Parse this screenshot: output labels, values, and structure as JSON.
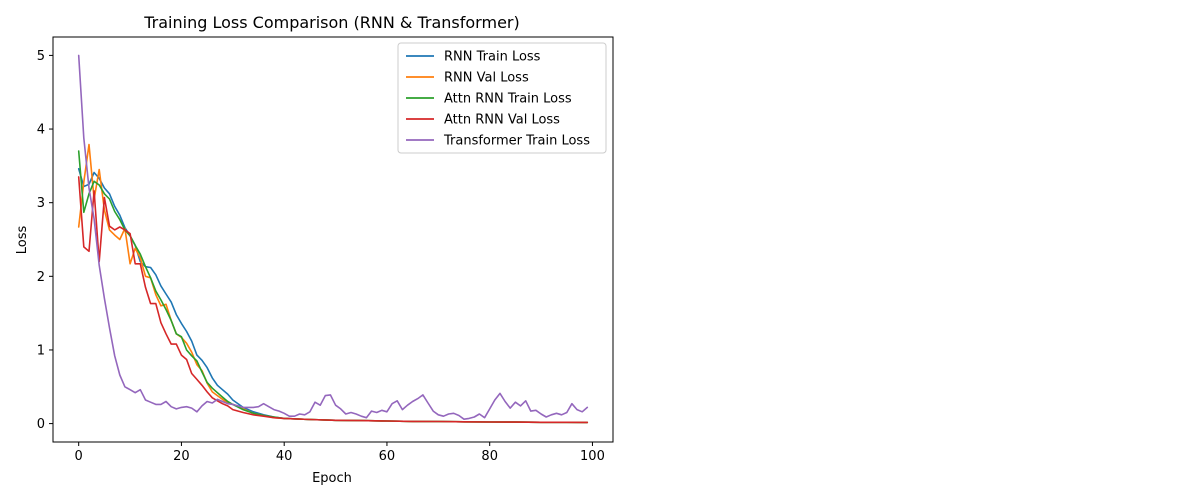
{
  "chart_data": {
    "type": "line",
    "title": "Training Loss Comparison (RNN & Transformer)",
    "xlabel": "Epoch",
    "ylabel": "Loss",
    "xlim": [
      -5,
      104
    ],
    "ylim": [
      -0.25,
      5.25
    ],
    "xticks": [
      0,
      20,
      40,
      60,
      80,
      100
    ],
    "yticks": [
      0,
      1,
      2,
      3,
      4,
      5
    ],
    "legend_position": "top-right",
    "grid": false,
    "series": [
      {
        "name": "RNN Train Loss",
        "color": "#1f77b4",
        "x": [
          0,
          1,
          2,
          3,
          4,
          5,
          6,
          7,
          8,
          9,
          10,
          11,
          12,
          13,
          14,
          15,
          16,
          17,
          18,
          19,
          20,
          21,
          22,
          23,
          24,
          25,
          26,
          27,
          28,
          29,
          30,
          32,
          34,
          36,
          38,
          40,
          45,
          50,
          55,
          60,
          65,
          70,
          75,
          80,
          85,
          90,
          95,
          99
        ],
        "y": [
          3.46,
          3.22,
          3.25,
          3.41,
          3.33,
          3.2,
          3.12,
          2.95,
          2.83,
          2.66,
          2.55,
          2.42,
          2.2,
          2.13,
          2.12,
          2.02,
          1.87,
          1.76,
          1.65,
          1.48,
          1.36,
          1.25,
          1.12,
          0.93,
          0.86,
          0.76,
          0.62,
          0.52,
          0.46,
          0.4,
          0.32,
          0.22,
          0.16,
          0.12,
          0.09,
          0.07,
          0.055,
          0.045,
          0.04,
          0.035,
          0.03,
          0.028,
          0.025,
          0.022,
          0.02,
          0.018,
          0.017,
          0.016
        ]
      },
      {
        "name": "RNN Val Loss",
        "color": "#ff7f0e",
        "x": [
          0,
          1,
          2,
          3,
          4,
          5,
          6,
          7,
          8,
          9,
          10,
          11,
          12,
          13,
          14,
          15,
          16,
          17,
          18,
          19,
          20,
          21,
          22,
          23,
          24,
          25,
          26,
          27,
          28,
          29,
          30,
          32,
          34,
          36,
          38,
          40,
          45,
          50,
          55,
          60,
          65,
          70,
          75,
          80,
          85,
          90,
          95,
          99
        ],
        "y": [
          2.67,
          3.28,
          3.79,
          3.05,
          3.45,
          2.9,
          2.63,
          2.56,
          2.5,
          2.65,
          2.17,
          2.38,
          2.25,
          2.0,
          1.98,
          1.75,
          1.6,
          1.62,
          1.4,
          1.22,
          1.17,
          1.09,
          0.97,
          0.8,
          0.72,
          0.55,
          0.43,
          0.38,
          0.33,
          0.28,
          0.26,
          0.2,
          0.14,
          0.11,
          0.08,
          0.07,
          0.055,
          0.045,
          0.04,
          0.035,
          0.03,
          0.028,
          0.025,
          0.022,
          0.02,
          0.018,
          0.017,
          0.016
        ]
      },
      {
        "name": "Attn RNN Train Loss",
        "color": "#2ca02c",
        "x": [
          0,
          1,
          2,
          3,
          4,
          5,
          6,
          7,
          8,
          9,
          10,
          11,
          12,
          13,
          14,
          15,
          16,
          17,
          18,
          19,
          20,
          21,
          22,
          23,
          24,
          25,
          26,
          27,
          28,
          29,
          30,
          32,
          34,
          36,
          38,
          40,
          45,
          50,
          55,
          60,
          65,
          70,
          75,
          80,
          85,
          90,
          95,
          99
        ],
        "y": [
          3.7,
          2.87,
          3.12,
          3.29,
          3.24,
          3.12,
          3.05,
          2.88,
          2.77,
          2.63,
          2.55,
          2.42,
          2.3,
          2.13,
          1.98,
          1.8,
          1.68,
          1.55,
          1.4,
          1.22,
          1.18,
          1.0,
          0.92,
          0.85,
          0.7,
          0.56,
          0.48,
          0.42,
          0.36,
          0.3,
          0.26,
          0.19,
          0.14,
          0.11,
          0.09,
          0.07,
          0.055,
          0.045,
          0.04,
          0.035,
          0.03,
          0.028,
          0.025,
          0.022,
          0.02,
          0.018,
          0.017,
          0.016
        ]
      },
      {
        "name": "Attn RNN Val Loss",
        "color": "#d62728",
        "x": [
          0,
          1,
          2,
          3,
          4,
          5,
          6,
          7,
          8,
          9,
          10,
          11,
          12,
          13,
          14,
          15,
          16,
          17,
          18,
          19,
          20,
          21,
          22,
          23,
          24,
          25,
          26,
          27,
          28,
          29,
          30,
          32,
          34,
          36,
          38,
          40,
          45,
          50,
          55,
          60,
          65,
          70,
          75,
          80,
          85,
          90,
          95,
          99
        ],
        "y": [
          3.35,
          2.4,
          2.34,
          3.16,
          2.2,
          3.07,
          2.68,
          2.63,
          2.67,
          2.63,
          2.58,
          2.17,
          2.17,
          1.85,
          1.63,
          1.63,
          1.37,
          1.22,
          1.08,
          1.08,
          0.93,
          0.87,
          0.68,
          0.6,
          0.52,
          0.43,
          0.35,
          0.31,
          0.27,
          0.24,
          0.19,
          0.15,
          0.12,
          0.1,
          0.08,
          0.07,
          0.055,
          0.045,
          0.04,
          0.035,
          0.03,
          0.028,
          0.025,
          0.022,
          0.02,
          0.018,
          0.017,
          0.016
        ]
      },
      {
        "name": "Transformer Train Loss",
        "color": "#9467bd",
        "x": [
          0,
          1,
          2,
          3,
          4,
          5,
          6,
          7,
          8,
          9,
          10,
          11,
          12,
          13,
          14,
          15,
          16,
          17,
          18,
          19,
          20,
          21,
          22,
          23,
          24,
          25,
          26,
          27,
          28,
          29,
          30,
          31,
          32,
          33,
          34,
          35,
          36,
          37,
          38,
          39,
          40,
          41,
          42,
          43,
          44,
          45,
          46,
          47,
          48,
          49,
          50,
          51,
          52,
          53,
          54,
          55,
          56,
          57,
          58,
          59,
          60,
          61,
          62,
          63,
          64,
          65,
          66,
          67,
          68,
          69,
          70,
          71,
          72,
          73,
          74,
          75,
          76,
          77,
          78,
          79,
          80,
          81,
          82,
          83,
          84,
          85,
          86,
          87,
          88,
          89,
          90,
          91,
          92,
          93,
          94,
          95,
          96,
          97,
          98,
          99
        ],
        "y": [
          5.0,
          3.88,
          3.2,
          2.78,
          2.15,
          1.7,
          1.3,
          0.92,
          0.66,
          0.5,
          0.46,
          0.42,
          0.46,
          0.32,
          0.29,
          0.26,
          0.26,
          0.3,
          0.23,
          0.2,
          0.22,
          0.23,
          0.21,
          0.16,
          0.24,
          0.3,
          0.28,
          0.33,
          0.3,
          0.27,
          0.26,
          0.24,
          0.22,
          0.22,
          0.22,
          0.23,
          0.27,
          0.23,
          0.19,
          0.17,
          0.14,
          0.1,
          0.1,
          0.13,
          0.12,
          0.16,
          0.29,
          0.25,
          0.38,
          0.39,
          0.25,
          0.2,
          0.13,
          0.15,
          0.13,
          0.1,
          0.08,
          0.17,
          0.15,
          0.18,
          0.16,
          0.27,
          0.31,
          0.19,
          0.25,
          0.3,
          0.34,
          0.39,
          0.28,
          0.17,
          0.12,
          0.1,
          0.13,
          0.14,
          0.11,
          0.06,
          0.07,
          0.09,
          0.13,
          0.08,
          0.2,
          0.32,
          0.41,
          0.3,
          0.21,
          0.29,
          0.24,
          0.31,
          0.17,
          0.18,
          0.13,
          0.09,
          0.12,
          0.14,
          0.12,
          0.15,
          0.27,
          0.19,
          0.16,
          0.22
        ]
      }
    ]
  }
}
